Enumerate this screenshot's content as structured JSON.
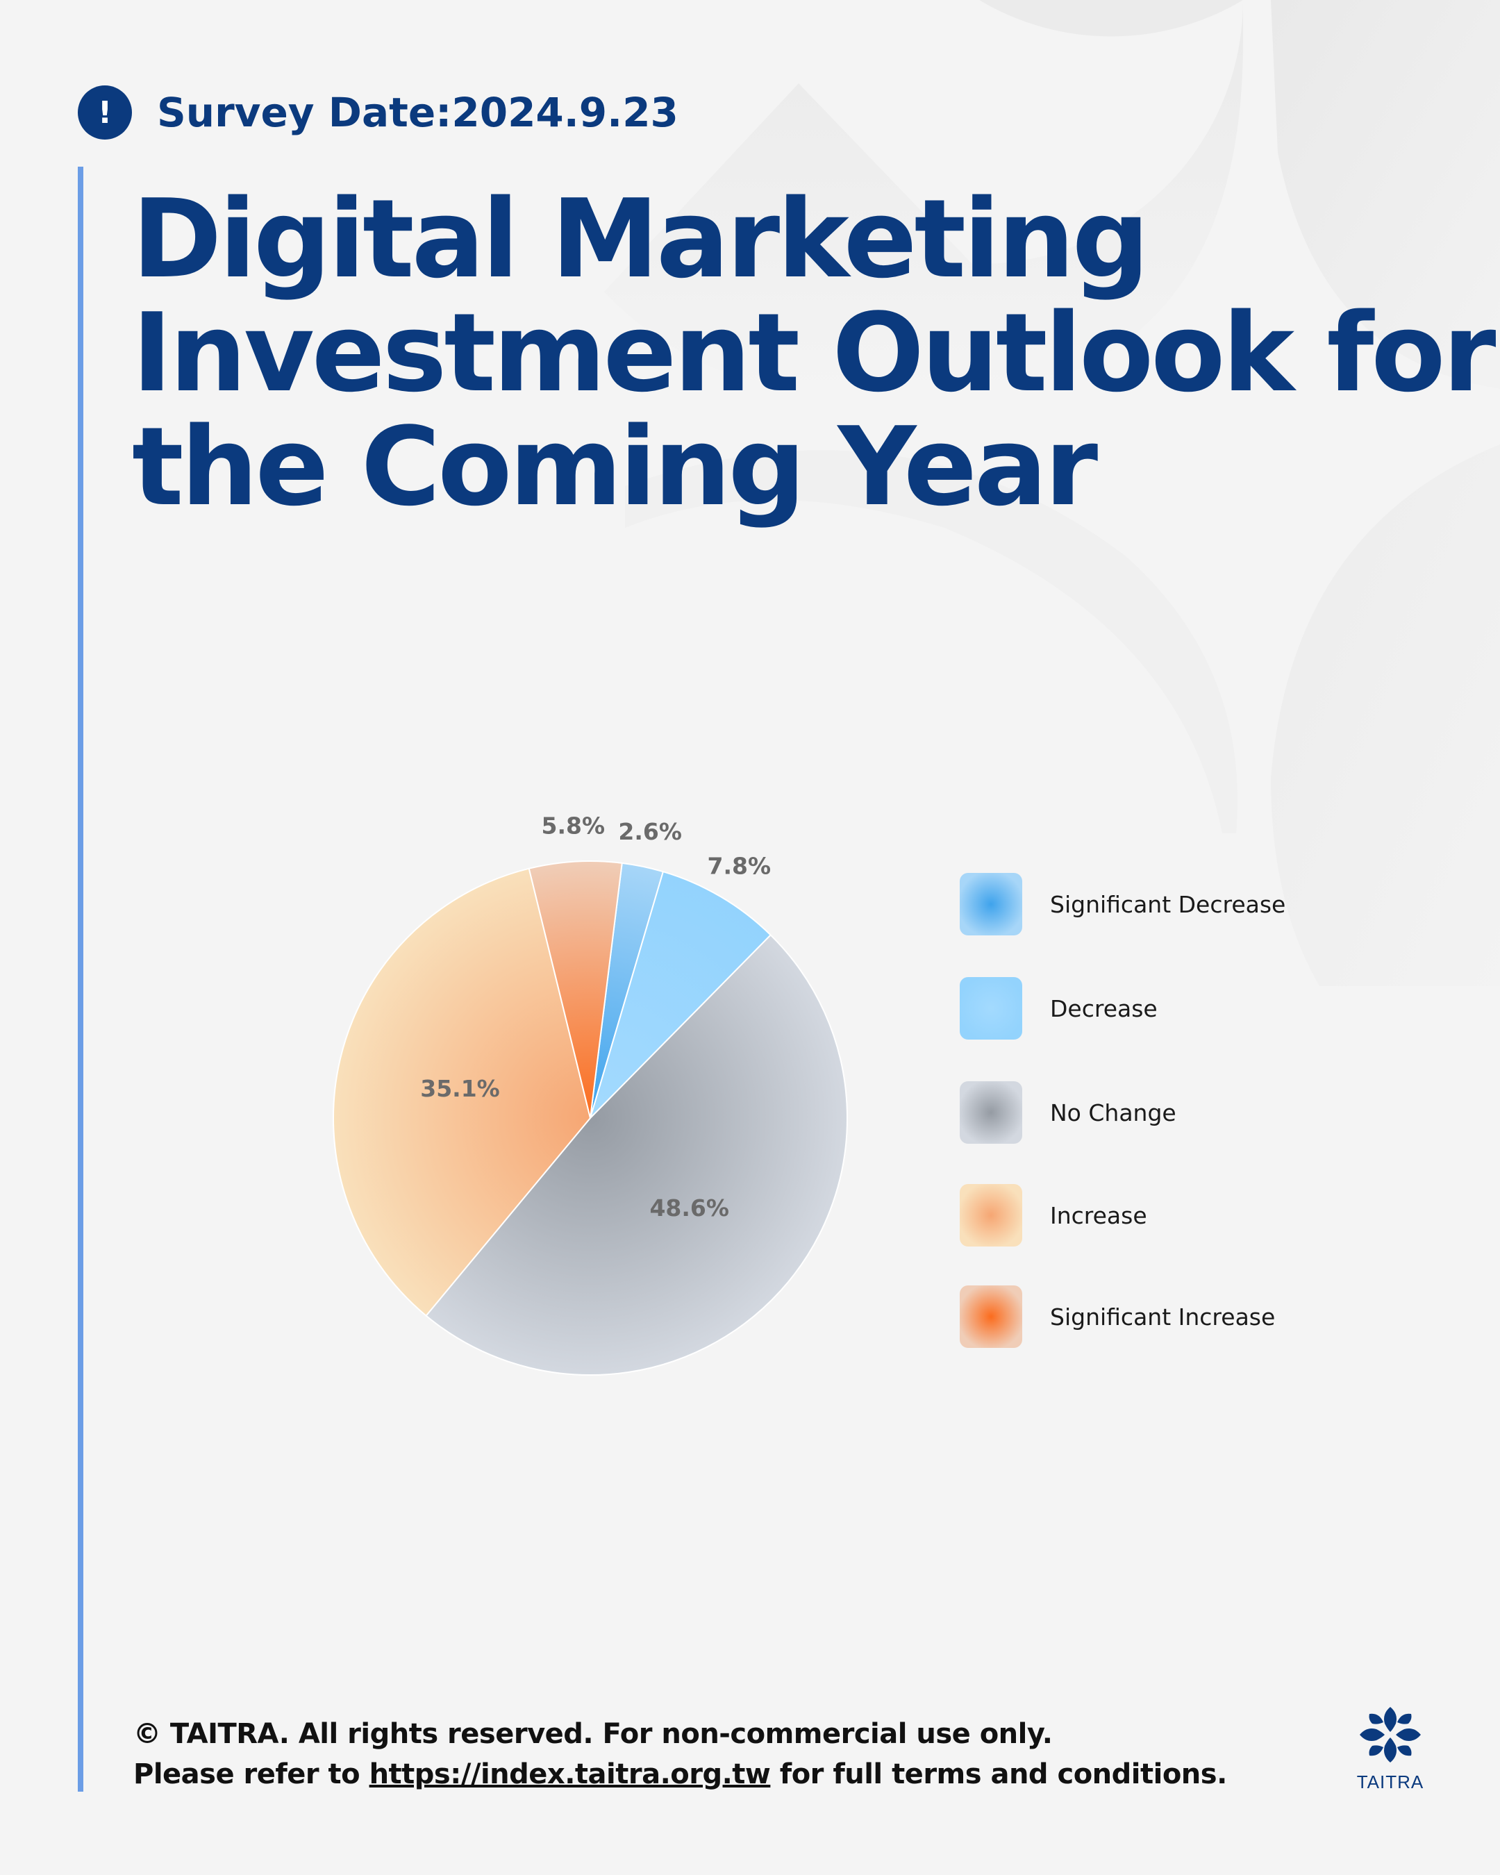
{
  "survey": {
    "label": "Survey Date:2024.9.23"
  },
  "title_lines": [
    "Digital Marketing",
    "Investment Outlook for",
    "the Coming Year"
  ],
  "chart_data": {
    "type": "pie",
    "categories": [
      "Significant Decrease",
      "Decrease",
      "No Change",
      "Increase",
      "Significant Increase"
    ],
    "values": [
      2.6,
      7.8,
      48.6,
      35.1,
      5.8
    ],
    "labels": [
      "2.6%",
      "7.8%",
      "48.6%",
      "35.1%",
      "5.8%"
    ],
    "legend_position": "right",
    "colors": {
      "Significant Decrease": [
        "#3fa3ec",
        "#a7d6f8"
      ],
      "Decrease": [
        "#a3dafe",
        "#93d3fd"
      ],
      "No Change": [
        "#959ba3",
        "#d3d8e0"
      ],
      "Increase": [
        "#f6a673",
        "#f9e0bb"
      ],
      "Significant Increase": [
        "#fb6c1e",
        "#f0cdb7"
      ]
    }
  },
  "legend": [
    {
      "label": "Significant Decrease"
    },
    {
      "label": "Decrease"
    },
    {
      "label": "No Change"
    },
    {
      "label": "Increase"
    },
    {
      "label": "Significant Increase"
    }
  ],
  "footer": {
    "line1": "© TAITRA. All rights reserved. For non-commercial use only.",
    "line2_prefix": "Please refer to ",
    "link": "https://index.taitra.org.tw",
    "line2_suffix": " for full terms and conditions."
  },
  "logo": {
    "text": "TAITRA"
  },
  "colors": {
    "brand": "#0b3a7e",
    "accent_bar": "#6b9de6",
    "background": "#f4f4f4"
  }
}
